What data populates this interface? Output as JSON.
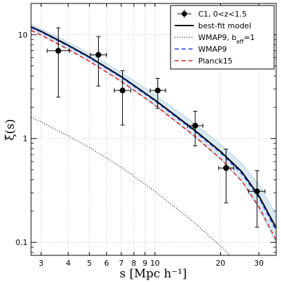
{
  "chart_data": {
    "type": "line",
    "xlabel": "s [Mpc h⁻¹]",
    "ylabel": "ξ(s)",
    "xscale": "log",
    "yscale": "log",
    "xlim": [
      2.7,
      36
    ],
    "ylim": [
      0.075,
      20
    ],
    "grid": true,
    "legend_position": "top-right",
    "x_ticks": [
      3,
      4,
      5,
      6,
      7,
      8,
      9,
      10,
      20,
      30
    ],
    "x_tick_labels": [
      "3",
      "4",
      "5",
      "6",
      "7",
      "8",
      "9",
      "10",
      "20",
      "30"
    ],
    "y_ticks": [
      0.1,
      1,
      10
    ],
    "y_tick_labels": [
      "0.1",
      "1",
      "10"
    ],
    "data_points": {
      "name": "C1, 0<z<1.5",
      "color": "#000000",
      "points": [
        {
          "x": 3.6,
          "y": 7.0,
          "xerr": [
            0.4,
            0.45
          ],
          "yerr": [
            4.5,
            4.6
          ]
        },
        {
          "x": 5.5,
          "y": 6.4,
          "xerr": [
            0.45,
            0.5
          ],
          "yerr": [
            3.2,
            3.2
          ]
        },
        {
          "x": 7.1,
          "y": 2.9,
          "xerr": [
            0.6,
            0.65
          ],
          "yerr": [
            1.55,
            1.6
          ]
        },
        {
          "x": 10.3,
          "y": 2.9,
          "xerr": [
            0.8,
            0.9
          ],
          "yerr": [
            0.95,
            0.9
          ]
        },
        {
          "x": 15.3,
          "y": 1.33,
          "xerr": [
            1.2,
            1.3
          ],
          "yerr": [
            0.48,
            0.5
          ]
        },
        {
          "x": 21.2,
          "y": 0.52,
          "xerr": [
            1.6,
            1.8
          ],
          "yerr": [
            0.28,
            0.27
          ]
        },
        {
          "x": 29.4,
          "y": 0.31,
          "xerr": [
            2.5,
            2.6
          ],
          "yerr": [
            0.17,
            0.18
          ]
        }
      ]
    },
    "series": [
      {
        "name": "best-fit model",
        "color": "#000000",
        "style": "solid",
        "x": [
          2.7,
          3,
          4,
          5,
          7,
          10,
          15,
          20,
          25,
          30,
          36
        ],
        "y": [
          11.9,
          10.8,
          7.9,
          6.1,
          3.95,
          2.35,
          1.23,
          0.75,
          0.48,
          0.28,
          0.138
        ]
      },
      {
        "name": "WMAP9, bₑff=1",
        "legend_label": "WMAP9, b_eff=1",
        "color": "#000000",
        "style": "dotted",
        "x": [
          2.7,
          3,
          4,
          5,
          7,
          10,
          15,
          20,
          25
        ],
        "y": [
          1.6,
          1.45,
          1.06,
          0.82,
          0.53,
          0.31,
          0.158,
          0.092,
          0.058
        ]
      },
      {
        "name": "WMAP9",
        "color": "#1f3fe0",
        "style": "dashed",
        "x": [
          2.7,
          3,
          4,
          5,
          7,
          10,
          15,
          20,
          25,
          30,
          36
        ],
        "y": [
          11.7,
          10.6,
          7.75,
          6.0,
          3.88,
          2.3,
          1.2,
          0.73,
          0.46,
          0.27,
          0.13
        ]
      },
      {
        "name": "Planck15",
        "color": "#e02020",
        "style": "dashed",
        "x": [
          2.7,
          3,
          4,
          5,
          7,
          10,
          15,
          20,
          25,
          30,
          36
        ],
        "y": [
          11.0,
          9.9,
          7.2,
          5.55,
          3.55,
          2.1,
          1.08,
          0.64,
          0.39,
          0.22,
          0.105
        ]
      }
    ],
    "band": {
      "color": "#c9dfec",
      "x": [
        2.7,
        3,
        4,
        5,
        7,
        10,
        15,
        20,
        25,
        30,
        36
      ],
      "y_low": [
        11.2,
        10.1,
        7.3,
        5.6,
        3.55,
        2.08,
        1.06,
        0.63,
        0.39,
        0.21,
        0.098
      ],
      "y_high": [
        12.5,
        11.4,
        8.45,
        6.6,
        4.35,
        2.65,
        1.42,
        0.88,
        0.58,
        0.36,
        0.185
      ]
    },
    "legend": [
      {
        "label": "C1, 0<z<1.5",
        "kind": "errorbar",
        "color": "#000000"
      },
      {
        "label": "best-fit model",
        "kind": "solid",
        "color": "#000000"
      },
      {
        "label": "WMAP9, b",
        "sub": "eff",
        "suffix": "=1",
        "kind": "dotted",
        "color": "#000000"
      },
      {
        "label": "WMAP9",
        "kind": "dashed",
        "color": "#1f3fe0"
      },
      {
        "label": "Planck15",
        "kind": "dashed",
        "color": "#e02020"
      }
    ]
  }
}
